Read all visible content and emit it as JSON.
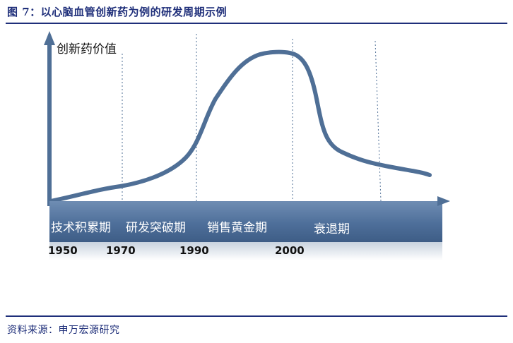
{
  "header": {
    "title": "图 7：以心脑血管创新药为例的研发周期示例"
  },
  "diagram": {
    "y_axis_label": "创新药价值",
    "phases": [
      {
        "label": "技术积累期"
      },
      {
        "label": "研发突破期"
      },
      {
        "label": "销售黄金期"
      },
      {
        "label": "衰退期"
      }
    ],
    "years": [
      "1950",
      "1970",
      "1990",
      "2000"
    ],
    "colors": {
      "curve": "#4f6f96",
      "axis": "#4f6f96",
      "band": "#4e6f9a",
      "label_text": "#ffffff",
      "title": "#1f2f7a"
    }
  },
  "footer": {
    "source": "资料来源：申万宏源研究"
  }
}
